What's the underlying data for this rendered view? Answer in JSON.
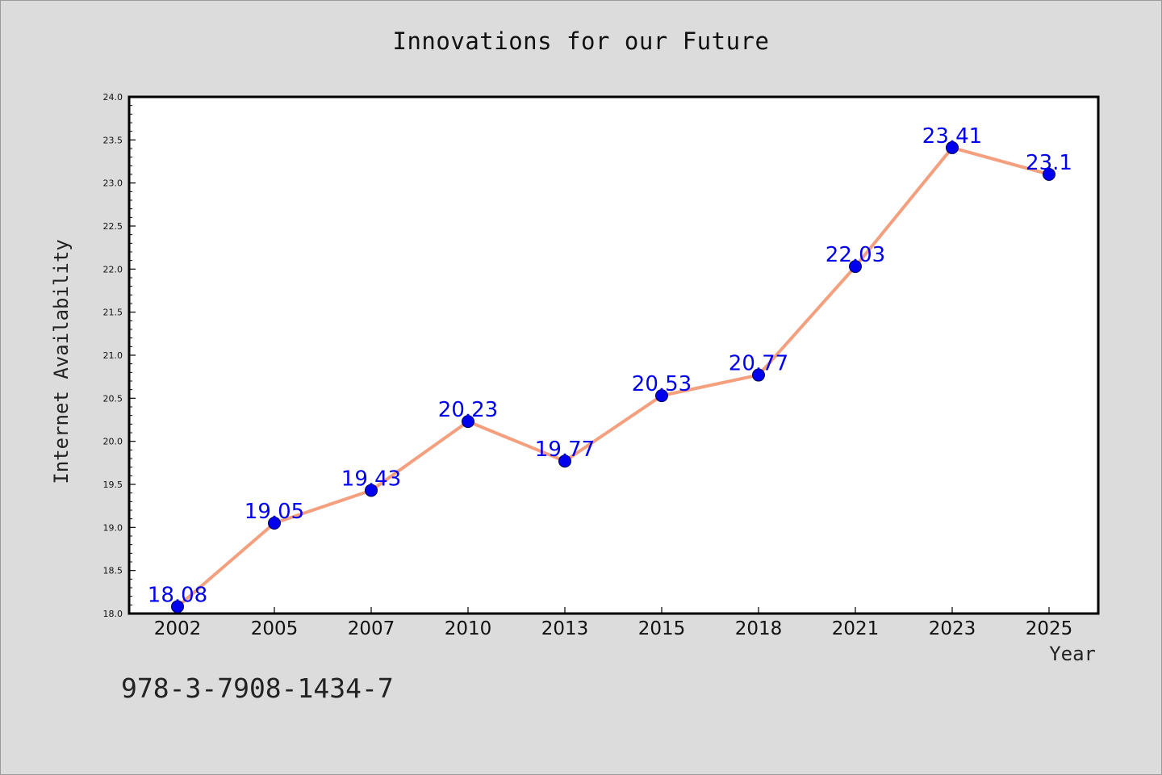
{
  "chart_data": {
    "type": "line",
    "title": "Innovations for our Future",
    "xlabel": "Year",
    "ylabel": "Internet Availability",
    "categories": [
      "2002",
      "2005",
      "2007",
      "2010",
      "2013",
      "2015",
      "2018",
      "2021",
      "2023",
      "2025"
    ],
    "series": [
      {
        "values": [
          18.08,
          19.05,
          19.43,
          20.23,
          19.77,
          20.53,
          20.77,
          22.03,
          23.41,
          23.1
        ],
        "labels": [
          "18.08",
          "19.05",
          "19.43",
          "20.23",
          "19.77",
          "20.53",
          "20.77",
          "22.03",
          "23.41",
          "23.1"
        ]
      }
    ],
    "ylim": [
      18.0,
      24.0
    ],
    "yticks": [
      "18.0",
      "18.5",
      "19.0",
      "19.5",
      "20.0",
      "20.5",
      "21.0",
      "21.5",
      "22.0",
      "22.5",
      "23.0",
      "23.5",
      "24.0"
    ],
    "grid": false,
    "line_color": "#f4a07e",
    "marker_color": "#0000ee",
    "label_color": "#0000ee"
  },
  "footer": {
    "isbn": "978-3-7908-1434-7"
  }
}
